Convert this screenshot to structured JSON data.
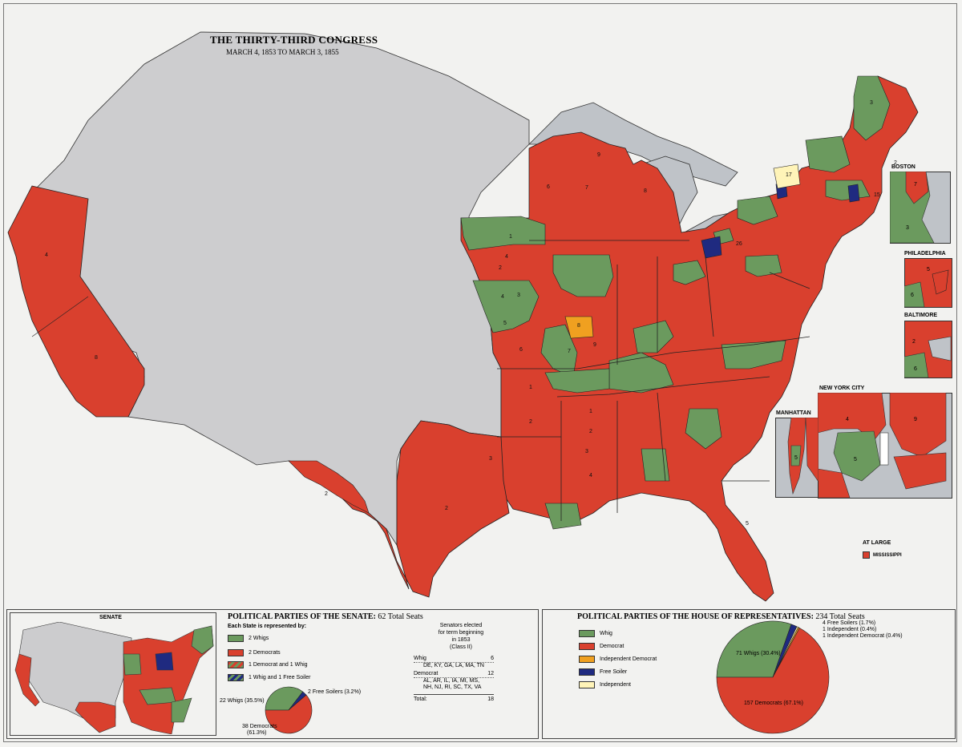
{
  "title": "THE THIRTY-THIRD CONGRESS",
  "subtitle": "MARCH 4, 1853 TO MARCH 3, 1855",
  "colors": {
    "whig": "#6b9a5e",
    "democrat": "#d9402e",
    "independent_democrat": "#f0a020",
    "free_soiler": "#1f2a80",
    "independent": "#fff4b8",
    "territory": "#ccccce",
    "water": "#bfc3c8",
    "border": "#222222"
  },
  "insets": {
    "boston": "BOSTON",
    "philadelphia": "PHILADELPHIA",
    "baltimore": "BALTIMORE",
    "new_york_city": "NEW YORK CITY",
    "manhattan": "MANHATTAN"
  },
  "at_large": {
    "heading": "AT LARGE",
    "label": "MISSISSIPPI"
  },
  "senate": {
    "map_label": "SENATE",
    "title": "POLITICAL PARTIES OF THE SENATE:",
    "total": "62 Total Seats",
    "legend_heading": "Each State is represented by:",
    "legend": [
      "2 Whigs",
      "2 Democrats",
      "1 Democrat and 1 Whig",
      "1 Whig and 1 Free Soiler"
    ],
    "elected_heading": [
      "Senators elected",
      "for term beginning",
      "in 1853",
      "(Class II)"
    ],
    "whig_label": "Whig",
    "whig_count": "6",
    "whig_states": "DE, KY, GA, LA, MA, TN",
    "dem_label": "Democrat",
    "dem_count": "12",
    "dem_states_1": "AL, AR, IL, IA, MI, MS,",
    "dem_states_2": "NH, NJ, RI, SC, TX, VA",
    "total_label": "Total:",
    "total_count": "18",
    "pie_labels": {
      "whigs": "22 Whigs (35.5%)",
      "free_soilers": "2 Free Soilers (3.2%)",
      "democrats_1": "38 Democrats",
      "democrats_2": "(61.3%)"
    }
  },
  "house": {
    "title": "POLITICAL PARTIES OF THE HOUSE OF REPRESENTATIVES:",
    "total": "234 Total Seats",
    "legend": [
      "Whig",
      "Democrat",
      "Independent Democrat",
      "Free Soiler",
      "Independent"
    ],
    "pie_labels": {
      "free_soilers": "4 Free Soilers (1.7%)",
      "independent": "1 Independent (0.4%)",
      "independent_democrat": "1 Independent Democrat (0.4%)",
      "whigs": "71 Whigs (30.4%)",
      "democrats": "157 Democrats (67.1%)"
    }
  },
  "chart_data": [
    {
      "type": "pie",
      "title": "POLITICAL PARTIES OF THE SENATE: 62 Total Seats",
      "categories": [
        "Whigs",
        "Free Soilers",
        "Democrats"
      ],
      "values": [
        22,
        2,
        38
      ],
      "percent": [
        35.5,
        3.2,
        61.3
      ]
    },
    {
      "type": "pie",
      "title": "POLITICAL PARTIES OF THE HOUSE OF REPRESENTATIVES: 234 Total Seats",
      "categories": [
        "Whigs",
        "Free Soilers",
        "Independent",
        "Independent Democrat",
        "Democrats"
      ],
      "values": [
        71,
        4,
        1,
        1,
        157
      ],
      "percent": [
        30.4,
        1.7,
        0.4,
        0.4,
        67.1
      ]
    }
  ],
  "district_numbers": [
    "4",
    "8",
    "2",
    "2",
    "3",
    "4",
    "1",
    "2",
    "1",
    "2",
    "3",
    "4",
    "5",
    "6",
    "7",
    "8",
    "9",
    "1",
    "2",
    "3",
    "4",
    "5",
    "6",
    "7",
    "8",
    "9",
    "10",
    "11",
    "12",
    "13",
    "14",
    "15",
    "16",
    "17",
    "18",
    "19",
    "20",
    "21",
    "22",
    "23",
    "24",
    "25",
    "26",
    "27",
    "28",
    "29",
    "30",
    "31",
    "32",
    "33",
    "5",
    "3",
    "2",
    "1",
    "6",
    "2",
    "3",
    "4",
    "1",
    "2",
    "3",
    "4",
    "1",
    "2",
    "1",
    "2",
    "3",
    "4",
    "5",
    "6",
    "7",
    "8",
    "9",
    "10",
    "11"
  ]
}
